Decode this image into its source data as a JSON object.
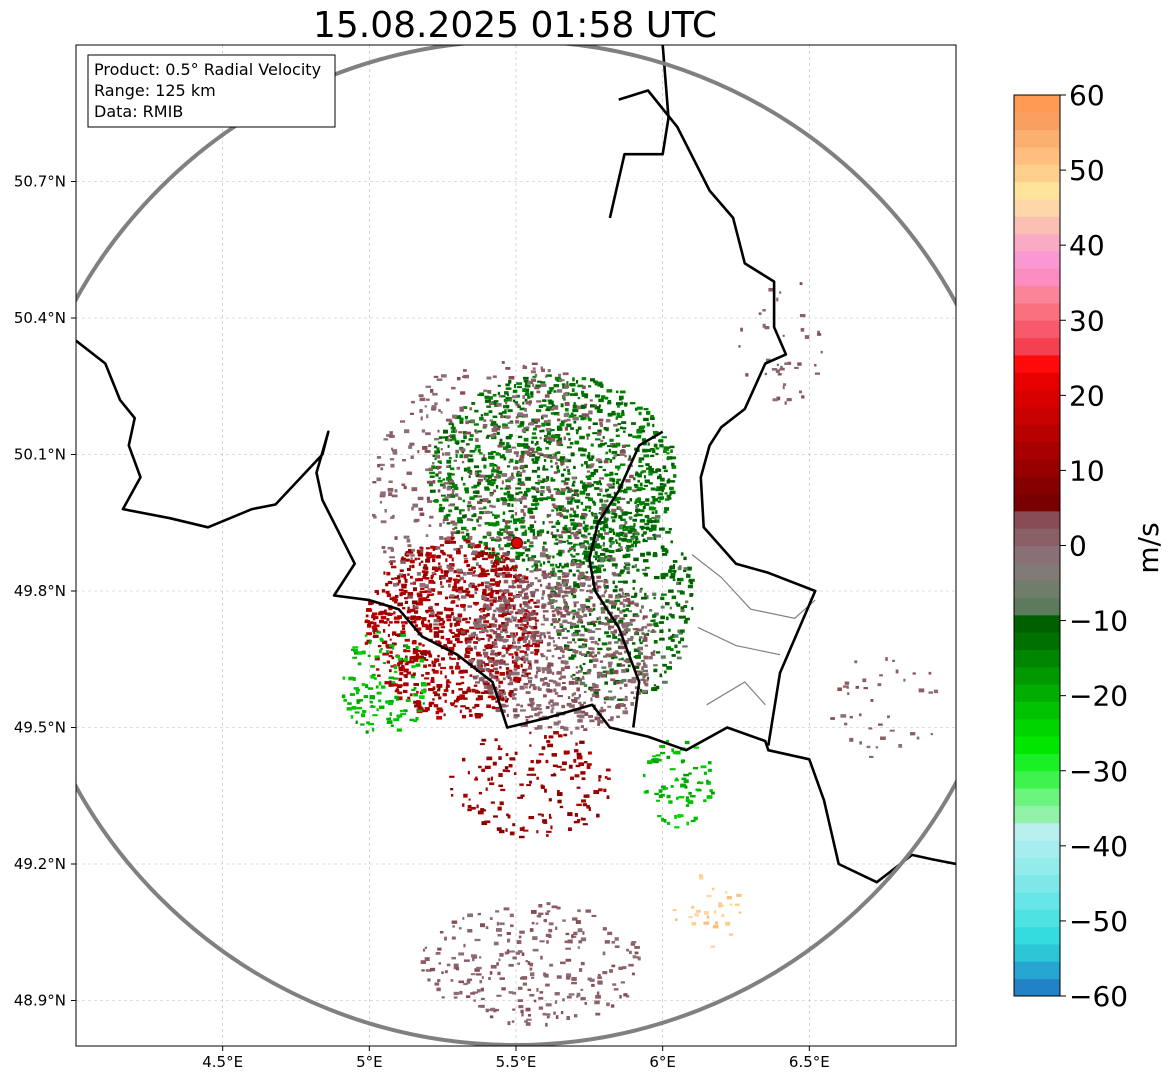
{
  "chart_data": {
    "type": "heatmap",
    "title": "15.08.2025 01:58 UTC",
    "info_box": [
      "Product: 0.5° Radial Velocity",
      "Range: 125 km",
      "Data: RMIB"
    ],
    "radar_site": {
      "lon": 5.505,
      "lat": 49.914
    },
    "range_ring_km": 125,
    "x_ticks": [
      {
        "value": 4.5,
        "label": "4.5°E"
      },
      {
        "value": 5.0,
        "label": "5°E"
      },
      {
        "value": 5.5,
        "label": "5.5°E"
      },
      {
        "value": 6.0,
        "label": "6°E"
      },
      {
        "value": 6.5,
        "label": "6.5°E"
      }
    ],
    "y_ticks": [
      {
        "value": 48.9,
        "label": "48.9°N"
      },
      {
        "value": 49.2,
        "label": "49.2°N"
      },
      {
        "value": 49.5,
        "label": "49.5°N"
      },
      {
        "value": 49.8,
        "label": "49.8°N"
      },
      {
        "value": 50.1,
        "label": "50.1°N"
      },
      {
        "value": 50.4,
        "label": "50.4°N"
      },
      {
        "value": 50.7,
        "label": "50.7°N"
      }
    ],
    "xlim": [
      4.0,
      7.0
    ],
    "ylim": [
      48.8,
      51.0
    ],
    "grid": true,
    "colorbar": {
      "label": "m/s",
      "min": -60,
      "max": 60,
      "ticks": [
        {
          "value": 60,
          "label": "60"
        },
        {
          "value": 50,
          "label": "50"
        },
        {
          "value": 40,
          "label": "40"
        },
        {
          "value": 30,
          "label": "30"
        },
        {
          "value": 20,
          "label": "20"
        },
        {
          "value": 10,
          "label": "10"
        },
        {
          "value": 0,
          "label": "0"
        },
        {
          "value": -10,
          "label": "−10"
        },
        {
          "value": -20,
          "label": "−20"
        },
        {
          "value": -30,
          "label": "−30"
        },
        {
          "value": -40,
          "label": "−40"
        },
        {
          "value": -50,
          "label": "−50"
        },
        {
          "value": -60,
          "label": "−60"
        }
      ],
      "colors": [
        "#2183c6",
        "#25a5cf",
        "#2cc6d6",
        "#34dcdf",
        "#4ee2e2",
        "#66e6e6",
        "#7ee8e8",
        "#93ebeb",
        "#a6eeee",
        "#b8f0f0",
        "#8ff2a8",
        "#6bf47e",
        "#3ef44c",
        "#19f025",
        "#00e600",
        "#00d500",
        "#00c200",
        "#00ae00",
        "#009a00",
        "#008500",
        "#007000",
        "#006000",
        "#5d7a5d",
        "#6f7d6a",
        "#807b76",
        "#8b6f76",
        "#8b5f66",
        "#874c55",
        "#780000",
        "#870000",
        "#980000",
        "#a80000",
        "#b80000",
        "#c90000",
        "#d90000",
        "#e80000",
        "#ff0a0a",
        "#f54052",
        "#f75a6a",
        "#f9707f",
        "#fa8599",
        "#fb8dc0",
        "#fa99d1",
        "#fbaac6",
        "#fbbfb4",
        "#fdd7a8",
        "#fde49a",
        "#fdcf8d",
        "#fdbe7e",
        "#fbb070",
        "#f9a060",
        "#ff9a55"
      ]
    },
    "velocity_clusters": [
      {
        "lon": 5.62,
        "lat": 50.06,
        "rx": 0.42,
        "ry": 0.22,
        "count": 1100,
        "vmin": -16,
        "vmax": -10
      },
      {
        "lon": 5.85,
        "lat": 49.78,
        "rx": 0.25,
        "ry": 0.22,
        "count": 500,
        "vmin": -14,
        "vmax": -8
      },
      {
        "lon": 5.28,
        "lat": 49.72,
        "rx": 0.3,
        "ry": 0.2,
        "count": 900,
        "vmin": 9,
        "vmax": 16
      },
      {
        "lon": 5.65,
        "lat": 49.67,
        "rx": 0.32,
        "ry": 0.18,
        "count": 700,
        "vmin": -2,
        "vmax": 4
      },
      {
        "lon": 5.45,
        "lat": 50.0,
        "rx": 0.45,
        "ry": 0.32,
        "count": 600,
        "vmin": -2,
        "vmax": 4
      },
      {
        "lon": 5.55,
        "lat": 49.38,
        "rx": 0.28,
        "ry": 0.12,
        "count": 160,
        "vmin": 8,
        "vmax": 14
      },
      {
        "lon": 5.55,
        "lat": 48.98,
        "rx": 0.38,
        "ry": 0.14,
        "count": 260,
        "vmin": -1,
        "vmax": 3
      },
      {
        "lon": 6.05,
        "lat": 49.38,
        "rx": 0.12,
        "ry": 0.1,
        "count": 80,
        "vmin": -24,
        "vmax": -18
      },
      {
        "lon": 6.75,
        "lat": 49.55,
        "rx": 0.2,
        "ry": 0.12,
        "count": 40,
        "vmin": -1,
        "vmax": 3
      },
      {
        "lon": 6.4,
        "lat": 50.35,
        "rx": 0.15,
        "ry": 0.15,
        "count": 40,
        "vmin": -1,
        "vmax": 3
      },
      {
        "lon": 5.05,
        "lat": 49.6,
        "rx": 0.15,
        "ry": 0.12,
        "count": 120,
        "vmin": -24,
        "vmax": -18
      },
      {
        "lon": 6.15,
        "lat": 49.1,
        "rx": 0.12,
        "ry": 0.08,
        "count": 30,
        "vmin": 45,
        "vmax": 52
      }
    ],
    "borders": {
      "color": "#000000",
      "regions_color": "#808080",
      "country_lines": [
        [
          [
            4.0,
            50.35
          ],
          [
            4.1,
            50.3
          ],
          [
            4.15,
            50.22
          ],
          [
            4.2,
            50.18
          ],
          [
            4.18,
            50.12
          ],
          [
            4.22,
            50.05
          ],
          [
            4.16,
            49.98
          ],
          [
            4.32,
            49.96
          ],
          [
            4.45,
            49.94
          ],
          [
            4.6,
            49.98
          ],
          [
            4.68,
            49.99
          ],
          [
            4.84,
            50.1
          ],
          [
            4.86,
            50.15
          ],
          [
            4.82,
            50.06
          ],
          [
            4.84,
            50.0
          ],
          [
            4.95,
            49.86
          ],
          [
            4.88,
            49.79
          ],
          [
            5.0,
            49.78
          ],
          [
            5.1,
            49.76
          ],
          [
            5.18,
            49.7
          ],
          [
            5.3,
            49.66
          ],
          [
            5.42,
            49.6
          ],
          [
            5.47,
            49.5
          ],
          [
            5.6,
            49.52
          ],
          [
            5.76,
            49.55
          ],
          [
            5.82,
            49.5
          ],
          [
            5.95,
            49.48
          ],
          [
            6.08,
            49.45
          ],
          [
            6.22,
            49.5
          ],
          [
            6.35,
            49.47
          ],
          [
            6.36,
            49.45
          ],
          [
            6.5,
            49.43
          ],
          [
            6.55,
            49.34
          ],
          [
            6.6,
            49.2
          ],
          [
            6.73,
            49.16
          ],
          [
            6.85,
            49.22
          ],
          [
            6.92,
            49.21
          ],
          [
            7.0,
            49.2
          ]
        ],
        [
          [
            5.82,
            50.62
          ],
          [
            5.87,
            50.76
          ],
          [
            6.0,
            50.76
          ],
          [
            6.02,
            50.84
          ],
          [
            6.0,
            51.0
          ]
        ],
        [
          [
            5.85,
            50.88
          ],
          [
            5.95,
            50.9
          ],
          [
            6.05,
            50.82
          ],
          [
            6.16,
            50.68
          ],
          [
            6.24,
            50.62
          ],
          [
            6.28,
            50.52
          ],
          [
            6.38,
            50.48
          ],
          [
            6.38,
            50.38
          ],
          [
            6.42,
            50.32
          ],
          [
            6.35,
            50.3
          ],
          [
            6.28,
            50.2
          ],
          [
            6.2,
            50.16
          ],
          [
            6.16,
            50.12
          ],
          [
            6.13,
            50.05
          ],
          [
            6.14,
            49.94
          ],
          [
            6.25,
            49.86
          ],
          [
            6.36,
            49.84
          ],
          [
            6.52,
            49.8
          ],
          [
            6.4,
            49.62
          ],
          [
            6.36,
            49.46
          ]
        ],
        [
          [
            6.0,
            50.15
          ],
          [
            5.92,
            50.12
          ],
          [
            5.85,
            50.02
          ],
          [
            5.78,
            49.95
          ],
          [
            5.75,
            49.87
          ],
          [
            5.77,
            49.8
          ],
          [
            5.85,
            49.72
          ],
          [
            5.92,
            49.6
          ],
          [
            5.9,
            49.5
          ]
        ]
      ],
      "region_lines": [
        [
          [
            6.1,
            49.88
          ],
          [
            6.2,
            49.83
          ],
          [
            6.3,
            49.76
          ],
          [
            6.45,
            49.74
          ],
          [
            6.52,
            49.78
          ]
        ],
        [
          [
            6.12,
            49.72
          ],
          [
            6.25,
            49.68
          ],
          [
            6.4,
            49.66
          ]
        ],
        [
          [
            6.15,
            49.55
          ],
          [
            6.28,
            49.6
          ],
          [
            6.35,
            49.55
          ]
        ]
      ]
    }
  }
}
